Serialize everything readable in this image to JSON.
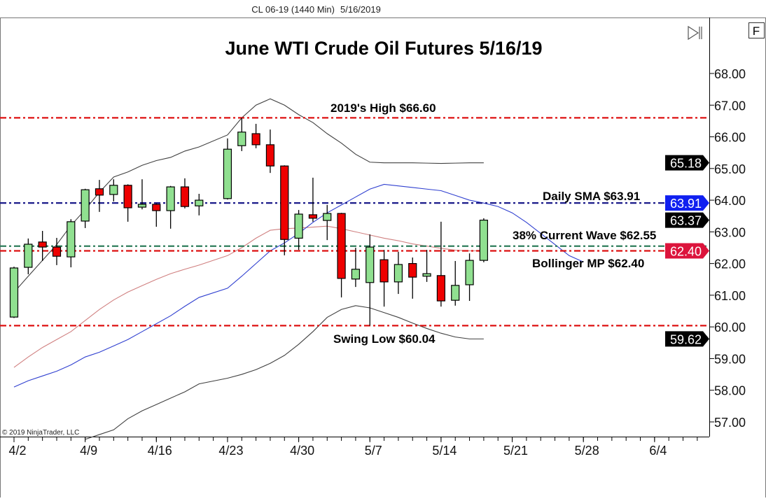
{
  "header": {
    "instrument": "CL 06-19 (1440 Min)",
    "date": "5/16/2019"
  },
  "toolbar": {
    "scroll_end_icon": "skip-to-end-icon",
    "f_button": "F"
  },
  "copyright": "© 2019 NinjaTrader, LLC",
  "chart_data": {
    "type": "candlestick",
    "title": "June WTI Crude Oil Futures 5/16/19",
    "ylim": [
      56.5,
      69.0
    ],
    "y_ticks": [
      "68.00",
      "67.00",
      "66.00",
      "65.00",
      "64.00",
      "63.00",
      "62.00",
      "61.00",
      "60.00",
      "59.00",
      "58.00",
      "57.00"
    ],
    "x_ticks": [
      "4/2",
      "4/9",
      "4/16",
      "4/23",
      "4/30",
      "5/7",
      "5/14",
      "5/21",
      "5/28",
      "6/4"
    ],
    "x_tick_dates": [
      "2019-04-02",
      "2019-04-09",
      "2019-04-16",
      "2019-04-23",
      "2019-04-30",
      "2019-05-07",
      "2019-05-14",
      "2019-05-21",
      "2019-05-28",
      "2019-06-04"
    ],
    "colors": {
      "up": "#90e090",
      "down": "#ee0000",
      "bb_outer": "#404040",
      "bb_mid": "#d08080",
      "blue_ma": "#3040d0"
    },
    "candles": [
      {
        "date": "2019-04-02",
        "o": 60.31,
        "h": 61.9,
        "l": 60.28,
        "c": 61.86
      },
      {
        "date": "2019-04-03",
        "o": 61.88,
        "h": 62.79,
        "l": 61.66,
        "c": 62.61
      },
      {
        "date": "2019-04-04",
        "o": 62.68,
        "h": 63.03,
        "l": 62.08,
        "c": 62.52
      },
      {
        "date": "2019-04-05",
        "o": 62.52,
        "h": 62.81,
        "l": 61.95,
        "c": 62.23
      },
      {
        "date": "2019-04-08",
        "o": 62.21,
        "h": 63.4,
        "l": 61.88,
        "c": 63.32
      },
      {
        "date": "2019-04-09",
        "o": 63.34,
        "h": 64.36,
        "l": 63.12,
        "c": 64.33
      },
      {
        "date": "2019-04-10",
        "o": 64.36,
        "h": 64.64,
        "l": 63.63,
        "c": 64.16
      },
      {
        "date": "2019-04-11",
        "o": 64.18,
        "h": 64.66,
        "l": 63.96,
        "c": 64.47
      },
      {
        "date": "2019-04-12",
        "o": 64.47,
        "h": 64.5,
        "l": 63.32,
        "c": 63.76
      },
      {
        "date": "2019-04-15",
        "o": 63.78,
        "h": 64.66,
        "l": 63.71,
        "c": 63.87
      },
      {
        "date": "2019-04-16",
        "o": 63.87,
        "h": 63.9,
        "l": 63.16,
        "c": 63.67
      },
      {
        "date": "2019-04-17",
        "o": 63.67,
        "h": 64.45,
        "l": 63.1,
        "c": 64.42
      },
      {
        "date": "2019-04-18",
        "o": 64.42,
        "h": 64.69,
        "l": 63.74,
        "c": 63.8
      },
      {
        "date": "2019-04-19",
        "o": 63.82,
        "h": 64.2,
        "l": 63.52,
        "c": 64.0
      },
      {
        "date": "2019-04-23",
        "o": 64.05,
        "h": 65.95,
        "l": 64.02,
        "c": 65.61
      },
      {
        "date": "2019-04-24",
        "o": 65.72,
        "h": 66.6,
        "l": 65.55,
        "c": 66.15
      },
      {
        "date": "2019-04-25",
        "o": 66.1,
        "h": 66.41,
        "l": 65.64,
        "c": 65.75
      },
      {
        "date": "2019-04-26",
        "o": 65.75,
        "h": 66.23,
        "l": 64.86,
        "c": 65.08
      },
      {
        "date": "2019-04-29",
        "o": 65.08,
        "h": 65.1,
        "l": 62.26,
        "c": 62.76
      },
      {
        "date": "2019-04-30",
        "o": 62.8,
        "h": 63.69,
        "l": 62.43,
        "c": 63.56
      },
      {
        "date": "2019-05-01",
        "o": 63.54,
        "h": 64.71,
        "l": 63.32,
        "c": 63.43
      },
      {
        "date": "2019-05-02",
        "o": 63.36,
        "h": 63.85,
        "l": 62.74,
        "c": 63.58
      },
      {
        "date": "2019-05-03",
        "o": 63.58,
        "h": 63.6,
        "l": 60.93,
        "c": 61.53
      },
      {
        "date": "2019-05-06",
        "o": 61.51,
        "h": 62.5,
        "l": 61.26,
        "c": 61.82
      },
      {
        "date": "2019-05-07",
        "o": 61.4,
        "h": 62.92,
        "l": 60.04,
        "c": 62.52
      },
      {
        "date": "2019-05-08",
        "o": 62.12,
        "h": 62.43,
        "l": 60.64,
        "c": 61.42
      },
      {
        "date": "2019-05-09",
        "o": 61.42,
        "h": 62.37,
        "l": 61.04,
        "c": 61.97
      },
      {
        "date": "2019-05-10",
        "o": 62.0,
        "h": 62.19,
        "l": 60.89,
        "c": 61.57
      },
      {
        "date": "2019-05-13",
        "o": 61.6,
        "h": 62.43,
        "l": 61.42,
        "c": 61.68
      },
      {
        "date": "2019-05-14",
        "o": 61.62,
        "h": 63.32,
        "l": 60.64,
        "c": 60.82
      },
      {
        "date": "2019-05-15",
        "o": 60.84,
        "h": 62.08,
        "l": 60.67,
        "c": 61.31
      },
      {
        "date": "2019-05-16",
        "o": 61.33,
        "h": 62.32,
        "l": 60.82,
        "c": 62.1
      },
      {
        "date": "2019-05-17",
        "o": 62.1,
        "h": 63.43,
        "l": 62.04,
        "c": 63.37
      }
    ],
    "indicators": [
      {
        "key": "bb_upper",
        "color": "#404040",
        "values": [
          61.09,
          61.6,
          62.1,
          62.6,
          63.2,
          63.7,
          64.25,
          64.73,
          64.89,
          65.1,
          65.25,
          65.35,
          65.55,
          65.68,
          66.06,
          66.6,
          67.0,
          67.2,
          67.0,
          66.7,
          66.45,
          66.1,
          65.8,
          65.45,
          65.2,
          65.18,
          65.18,
          65.18,
          65.17,
          65.16,
          65.17,
          65.18,
          65.18
        ]
      },
      {
        "key": "bb_middle",
        "color": "#d08080",
        "values": [
          58.72,
          59.05,
          59.35,
          59.6,
          59.85,
          60.2,
          60.55,
          60.85,
          61.1,
          61.3,
          61.5,
          61.68,
          61.82,
          61.95,
          62.25,
          62.5,
          62.8,
          63.05,
          63.1,
          63.12,
          63.15,
          63.18,
          63.1,
          63.0,
          62.9,
          62.8,
          62.72,
          62.62,
          62.55,
          62.48,
          62.42,
          62.4,
          62.4
        ]
      },
      {
        "key": "bb_lower",
        "color": "#404040",
        "values": [
          null,
          null,
          null,
          null,
          null,
          56.45,
          56.6,
          56.75,
          57.1,
          57.35,
          57.55,
          57.75,
          57.95,
          58.2,
          58.38,
          58.5,
          58.65,
          58.85,
          59.1,
          59.45,
          59.85,
          60.3,
          60.55,
          60.67,
          60.6,
          60.45,
          60.3,
          60.12,
          59.95,
          59.8,
          59.68,
          59.62,
          59.62
        ]
      },
      {
        "key": "blue_ma",
        "color": "#3040d0",
        "values": [
          58.1,
          58.3,
          58.45,
          58.6,
          58.8,
          59.05,
          59.2,
          59.4,
          59.6,
          59.85,
          60.1,
          60.35,
          60.65,
          60.93,
          61.22,
          61.6,
          62.0,
          62.4,
          62.65,
          62.95,
          63.3,
          63.6,
          63.85,
          64.1,
          64.35,
          64.5,
          64.45,
          64.4,
          64.35,
          64.3,
          64.15,
          64.0,
          63.91
        ],
        "projection_dates": [
          "2019-05-20",
          "2019-05-21",
          "2019-05-22",
          "2019-05-23",
          "2019-05-24",
          "2019-05-27",
          "2019-05-28"
        ],
        "projection_values": [
          63.8,
          63.6,
          63.3,
          62.95,
          62.6,
          62.25,
          62.05
        ]
      }
    ],
    "levels": [
      {
        "label": "2019's High $66.60",
        "price": 66.6,
        "color": "#dd1111"
      },
      {
        "label": "Daily SMA $63.91",
        "price": 63.91,
        "color": "#1a1a8a"
      },
      {
        "label": "38% Current Wave $62.55",
        "price": 62.55,
        "color": "#2e7d5b"
      },
      {
        "label": "Bollinger MP $62.40",
        "price": 62.4,
        "color": "#dd1111"
      },
      {
        "label": "Swing Low $60.04",
        "price": 60.04,
        "color": "#dd1111"
      }
    ],
    "price_tags": [
      {
        "value": "65.18",
        "price": 65.18,
        "color": "#000000"
      },
      {
        "value": "63.91",
        "price": 63.91,
        "color": "#1020f0"
      },
      {
        "value": "63.37",
        "price": 63.37,
        "color": "#000000"
      },
      {
        "value": "62.40",
        "price": 62.4,
        "color": "#dc143c"
      },
      {
        "value": "59.62",
        "price": 59.62,
        "color": "#000000"
      }
    ]
  }
}
